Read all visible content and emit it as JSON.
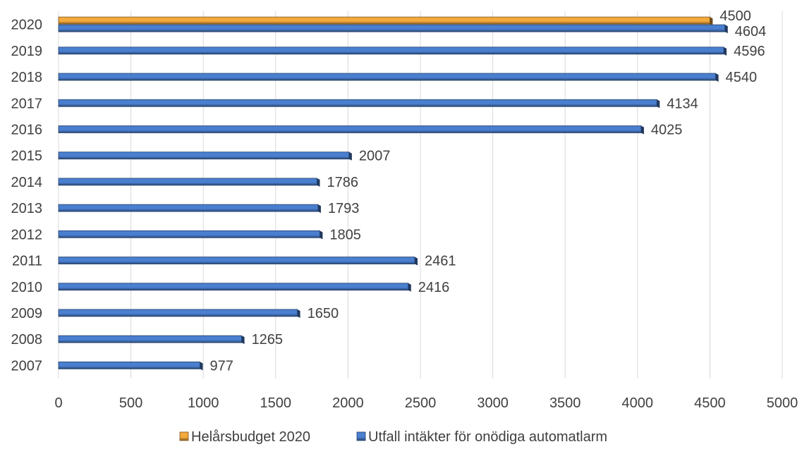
{
  "chart_data": {
    "type": "bar",
    "orientation": "horizontal",
    "categories": [
      "2020",
      "2019",
      "2018",
      "2017",
      "2016",
      "2015",
      "2014",
      "2013",
      "2012",
      "2011",
      "2010",
      "2009",
      "2008",
      "2007"
    ],
    "series": [
      {
        "name": "Helårsbudget 2020",
        "color": "#F4A93C",
        "values": [
          4500,
          null,
          null,
          null,
          null,
          null,
          null,
          null,
          null,
          null,
          null,
          null,
          null,
          null
        ]
      },
      {
        "name": "Utfall intäkter för onödiga automatlarm",
        "color": "#4A7FD0",
        "values": [
          4604,
          4596,
          4540,
          4134,
          4025,
          2007,
          1786,
          1793,
          1805,
          2461,
          2416,
          1650,
          1265,
          977
        ]
      }
    ],
    "xlim": [
      0,
      5000
    ],
    "xticks": [
      "0",
      "500",
      "1000",
      "1500",
      "2000",
      "2500",
      "3000",
      "3500",
      "4000",
      "4500",
      "5000"
    ],
    "grid": true,
    "legend_position": "bottom",
    "title": "",
    "xlabel": "",
    "ylabel": ""
  }
}
